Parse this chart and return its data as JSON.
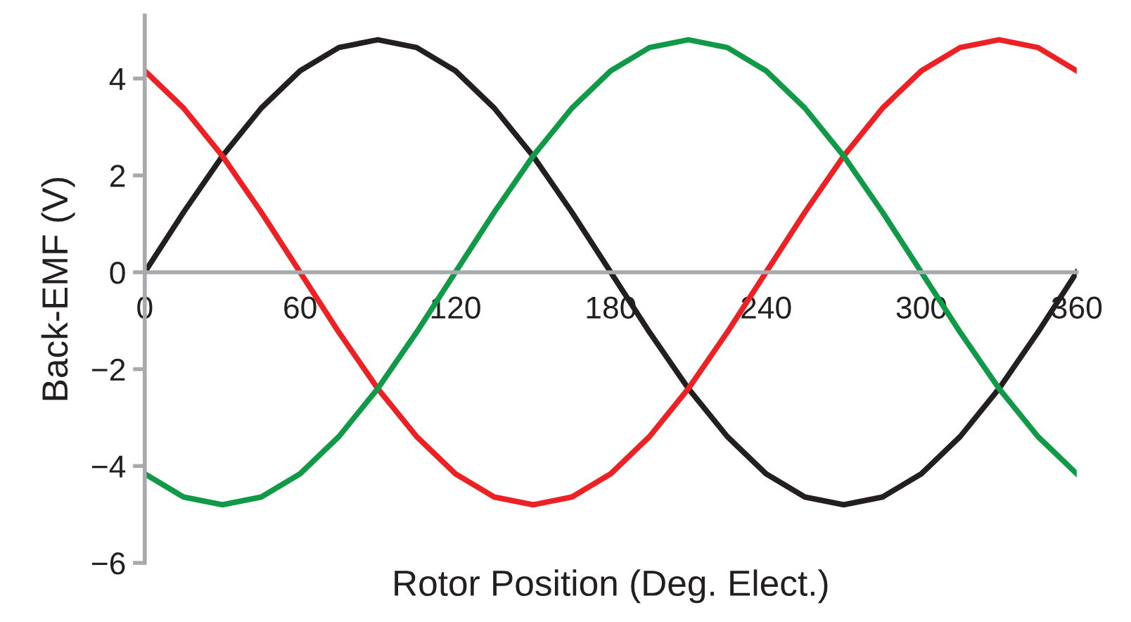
{
  "chart_data": {
    "type": "line",
    "xlabel": "Rotor Position (Deg. Elect.)",
    "ylabel": "Back-EMF (V)",
    "x": [
      0,
      15,
      30,
      45,
      60,
      75,
      90,
      105,
      120,
      135,
      150,
      165,
      180,
      195,
      210,
      225,
      240,
      255,
      270,
      285,
      300,
      315,
      330,
      345,
      360
    ],
    "series": [
      {
        "color": "#231f20",
        "values": [
          0,
          1.24,
          2.4,
          3.39,
          4.16,
          4.64,
          4.8,
          4.64,
          4.16,
          3.39,
          2.4,
          1.24,
          0,
          -1.24,
          -2.4,
          -3.39,
          -4.16,
          -4.64,
          -4.8,
          -4.64,
          -4.16,
          -3.39,
          -2.4,
          -1.24,
          0
        ]
      },
      {
        "color": "#ed2024",
        "values": [
          4.16,
          3.39,
          2.4,
          1.24,
          0,
          -1.24,
          -2.4,
          -3.39,
          -4.16,
          -4.64,
          -4.8,
          -4.64,
          -4.16,
          -3.39,
          -2.4,
          -1.24,
          0,
          1.24,
          2.4,
          3.39,
          4.16,
          4.64,
          4.8,
          4.64,
          4.16
        ]
      },
      {
        "color": "#109a48",
        "values": [
          -4.16,
          -4.64,
          -4.8,
          -4.64,
          -4.16,
          -3.39,
          -2.4,
          -1.24,
          0,
          1.24,
          2.4,
          3.39,
          4.16,
          4.64,
          4.8,
          4.64,
          4.16,
          3.39,
          2.4,
          1.24,
          0,
          -1.24,
          -2.4,
          -3.39,
          -4.16
        ]
      }
    ],
    "xlim": [
      0,
      360
    ],
    "xticks": [
      0,
      60,
      120,
      180,
      240,
      300,
      360
    ],
    "ylim": [
      -6,
      5.3
    ],
    "yticks": [
      {
        "value": -6,
        "label": "−6"
      },
      {
        "value": -4,
        "label": "−4"
      },
      {
        "value": -2,
        "label": "−2"
      },
      0,
      2,
      4
    ],
    "grid": false,
    "marker": "none",
    "line_style": "solid"
  }
}
